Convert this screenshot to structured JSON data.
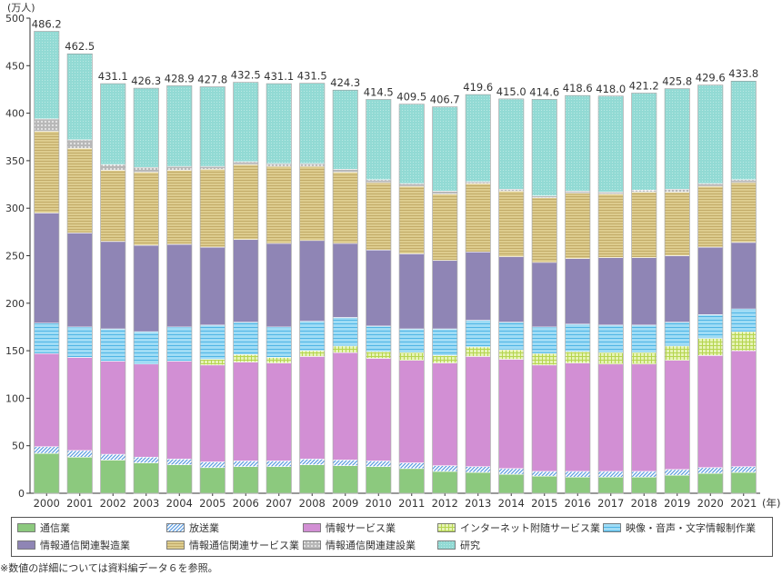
{
  "chart_data": {
    "type": "bar",
    "stacked": true,
    "unit_label": "(万人)",
    "x_unit_label": "(年)",
    "ylim": [
      0,
      500
    ],
    "yticks": [
      0,
      50,
      100,
      150,
      200,
      250,
      300,
      350,
      400,
      450,
      500
    ],
    "categories": [
      "2000",
      "2001",
      "2002",
      "2003",
      "2004",
      "2005",
      "2006",
      "2007",
      "2008",
      "2009",
      "2010",
      "2011",
      "2012",
      "2013",
      "2014",
      "2015",
      "2016",
      "2017",
      "2018",
      "2019",
      "2020",
      "2021"
    ],
    "totals": [
      "486.2",
      "462.5",
      "431.1",
      "426.3",
      "428.9",
      "427.8",
      "432.5",
      "431.1",
      "431.5",
      "424.3",
      "414.5",
      "409.5",
      "406.7",
      "419.6",
      "415.0",
      "414.6",
      "418.6",
      "418.0",
      "421.2",
      "425.8",
      "429.6",
      "433.8"
    ],
    "series": [
      {
        "name": "通信業",
        "color": "#8cc97e",
        "values": [
          42,
          38,
          35,
          32,
          30,
          27,
          28,
          28,
          30,
          29,
          28,
          26,
          23,
          22,
          20,
          18,
          17,
          17,
          17,
          19,
          21,
          22
        ]
      },
      {
        "name": "放送業",
        "color": "#9cc3ea",
        "values": [
          7,
          7,
          6,
          6,
          6,
          6,
          6,
          6,
          6,
          6,
          6,
          6,
          6,
          6,
          6,
          5,
          6,
          6,
          6,
          6,
          6,
          6
        ]
      },
      {
        "name": "情報サービス業",
        "color": "#d28fd4",
        "values": [
          98,
          98,
          98,
          98,
          103,
          102,
          104,
          103,
          108,
          113,
          108,
          108,
          108,
          116,
          115,
          112,
          114,
          113,
          113,
          115,
          118,
          122
        ]
      },
      {
        "name": "インターネット附随サービス業",
        "color": "#dcee9c",
        "values": [
          0,
          0,
          0,
          0,
          0,
          6,
          8,
          6,
          6,
          7,
          7,
          8,
          8,
          10,
          10,
          12,
          12,
          12,
          12,
          15,
          18,
          20
        ]
      },
      {
        "name": "映像・音声・文字情報制作業",
        "color": "#8fd6f2",
        "values": [
          32,
          32,
          34,
          34,
          36,
          36,
          34,
          32,
          31,
          30,
          27,
          25,
          28,
          28,
          29,
          28,
          29,
          29,
          29,
          25,
          25,
          24
        ]
      },
      {
        "name": "情報通信関連製造業",
        "color": "#8f85b5",
        "values": [
          116,
          99,
          92,
          91,
          87,
          82,
          87,
          88,
          85,
          78,
          80,
          79,
          72,
          72,
          69,
          68,
          69,
          71,
          71,
          70,
          71,
          70
        ]
      },
      {
        "name": "情報通信関連サービス業",
        "color": "#d9c98a",
        "values": [
          86,
          89,
          75,
          77,
          78,
          82,
          79,
          81,
          78,
          75,
          71,
          71,
          70,
          72,
          69,
          68,
          69,
          67,
          69,
          67,
          64,
          63
        ]
      },
      {
        "name": "情報通信関連建設業",
        "color": "#b3b3b3",
        "values": [
          13,
          9,
          6,
          5,
          4,
          3,
          3,
          3,
          3,
          3,
          3,
          3,
          3,
          2,
          2,
          2,
          2,
          2,
          2,
          3,
          3,
          3
        ]
      },
      {
        "name": "研究",
        "color": "#8fd8d2",
        "values": [
          92.2,
          90.5,
          85.1,
          83.3,
          84.9,
          83.8,
          83.5,
          84.1,
          84.5,
          83.3,
          84.5,
          83.5,
          88.7,
          91.6,
          95.0,
          101.6,
          100.6,
          101.0,
          102.2,
          105.8,
          103.6,
          103.8
        ]
      }
    ]
  },
  "legend_order": [
    0,
    1,
    2,
    3,
    4,
    5,
    6,
    7,
    8
  ],
  "footnote": "※数値の詳細については資料編データ６を参照。"
}
